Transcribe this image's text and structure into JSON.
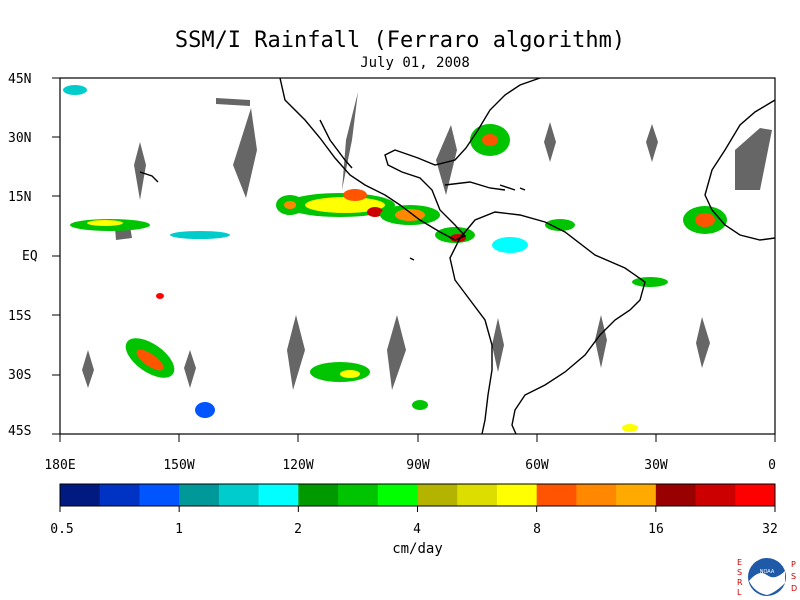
{
  "title": "SSM/I Rainfall (Ferraro algorithm)",
  "date": "July 01, 2008",
  "map": {
    "lon_range": [
      -180,
      0
    ],
    "lat_range": [
      -45,
      45
    ],
    "lat_labels": [
      "45N",
      "30N",
      "15N",
      "EQ",
      "15S",
      "30S",
      "45S"
    ],
    "lon_labels": [
      "180E",
      "150W",
      "120W",
      "90W",
      "60W",
      "30W",
      "0"
    ]
  },
  "colorbar": {
    "colors": [
      "#001a80",
      "#0033c4",
      "#0055ff",
      "#009999",
      "#00cccc",
      "#00ffff",
      "#009900",
      "#00c400",
      "#00ff00",
      "#b3b300",
      "#dddd00",
      "#ffff00",
      "#ff5500",
      "#ff8800",
      "#ffaa00",
      "#990000",
      "#cc0000",
      "#ff0000"
    ],
    "tick_labels": [
      "0.5",
      "1",
      "2",
      "4",
      "8",
      "16",
      "32"
    ],
    "units": "cm/day"
  },
  "logo": {
    "left_letters": [
      "E",
      "S",
      "R",
      "L"
    ],
    "right_letters": [
      "P",
      "S",
      "D"
    ],
    "center_text": "NOAA"
  }
}
